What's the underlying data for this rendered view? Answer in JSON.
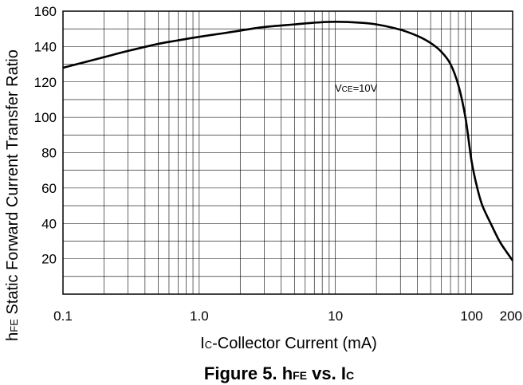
{
  "chart_data": {
    "type": "line",
    "x_scale": "log",
    "xlim": [
      0.1,
      200
    ],
    "ylim": [
      0,
      160
    ],
    "grid": true,
    "ylabel_prefix": "h",
    "ylabel_sub": "FE",
    "ylabel_rest": " Static Forward Current Transfer Ratio",
    "xlabel_prefix": "I",
    "xlabel_sub": "C",
    "xlabel_rest": "-Collector Current  (mA)",
    "y_ticks": [
      "20",
      "40",
      "60",
      "80",
      "100",
      "120",
      "140",
      "160"
    ],
    "x_ticks": [
      "0.1",
      "1.0",
      "10",
      "100",
      "200"
    ],
    "annotation_prefix": "V",
    "annotation_sub": "CE",
    "annotation_rest": "=10V",
    "series": [
      {
        "x": [
          0.1,
          0.15,
          0.2,
          0.3,
          0.5,
          0.7,
          1.0,
          1.5,
          2,
          3,
          5,
          7,
          10,
          15,
          20,
          30,
          40,
          50,
          60,
          70,
          80,
          90,
          100,
          110,
          120,
          140,
          160,
          180,
          200
        ],
        "y": [
          128,
          131.5,
          134,
          137.5,
          141.5,
          143.5,
          145.5,
          147.5,
          149,
          151,
          152.5,
          153.5,
          154,
          153.5,
          152.5,
          149.5,
          146,
          142,
          137,
          130,
          118,
          100,
          75,
          60,
          50,
          39,
          30,
          24,
          19
        ]
      }
    ]
  },
  "caption": {
    "part1": "Figure 5. h",
    "sub1": "FE",
    "part2": " vs. I",
    "sub2": "C"
  }
}
